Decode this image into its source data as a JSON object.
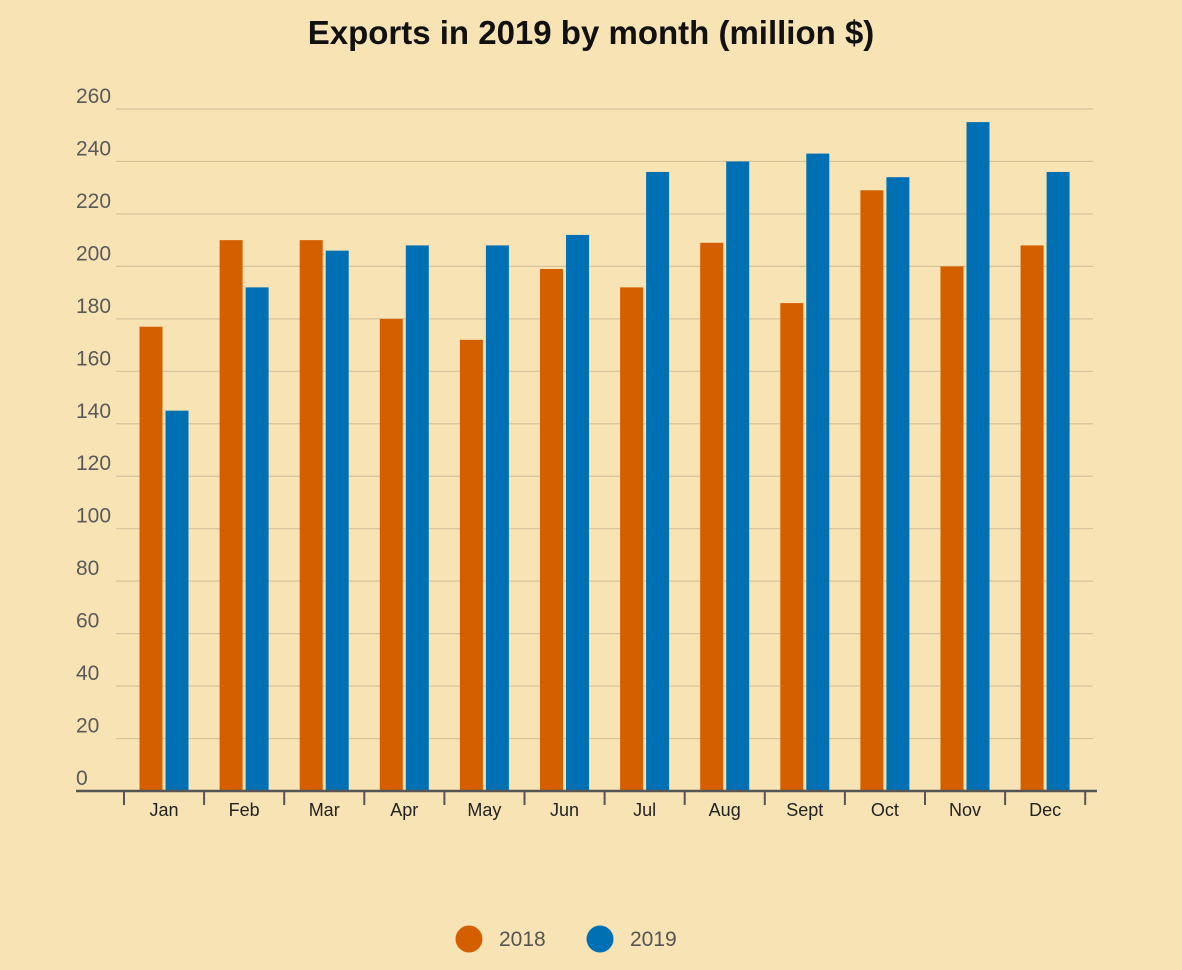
{
  "chart_data": {
    "type": "bar",
    "title": "Exports in 2019 by month (million $)",
    "xlabel": "",
    "ylabel": "",
    "categories": [
      "Jan",
      "Feb",
      "Mar",
      "Apr",
      "May",
      "Jun",
      "Jul",
      "Aug",
      "Sept",
      "Oct",
      "Nov",
      "Dec"
    ],
    "series": [
      {
        "name": "2018",
        "color": "#d45f00",
        "values": [
          177,
          210,
          210,
          180,
          172,
          199,
          192,
          209,
          186,
          229,
          200,
          208
        ]
      },
      {
        "name": "2019",
        "color": "#0070b4",
        "values": [
          145,
          192,
          206,
          208,
          208,
          212,
          236,
          240,
          243,
          234,
          255,
          236
        ]
      }
    ],
    "ylim": [
      0,
      260
    ],
    "yticks": [
      0,
      20,
      40,
      60,
      80,
      100,
      120,
      140,
      160,
      180,
      200,
      220,
      240,
      260
    ],
    "grid": true,
    "legend_position": "bottom-center",
    "background": "#f8e3b4"
  }
}
